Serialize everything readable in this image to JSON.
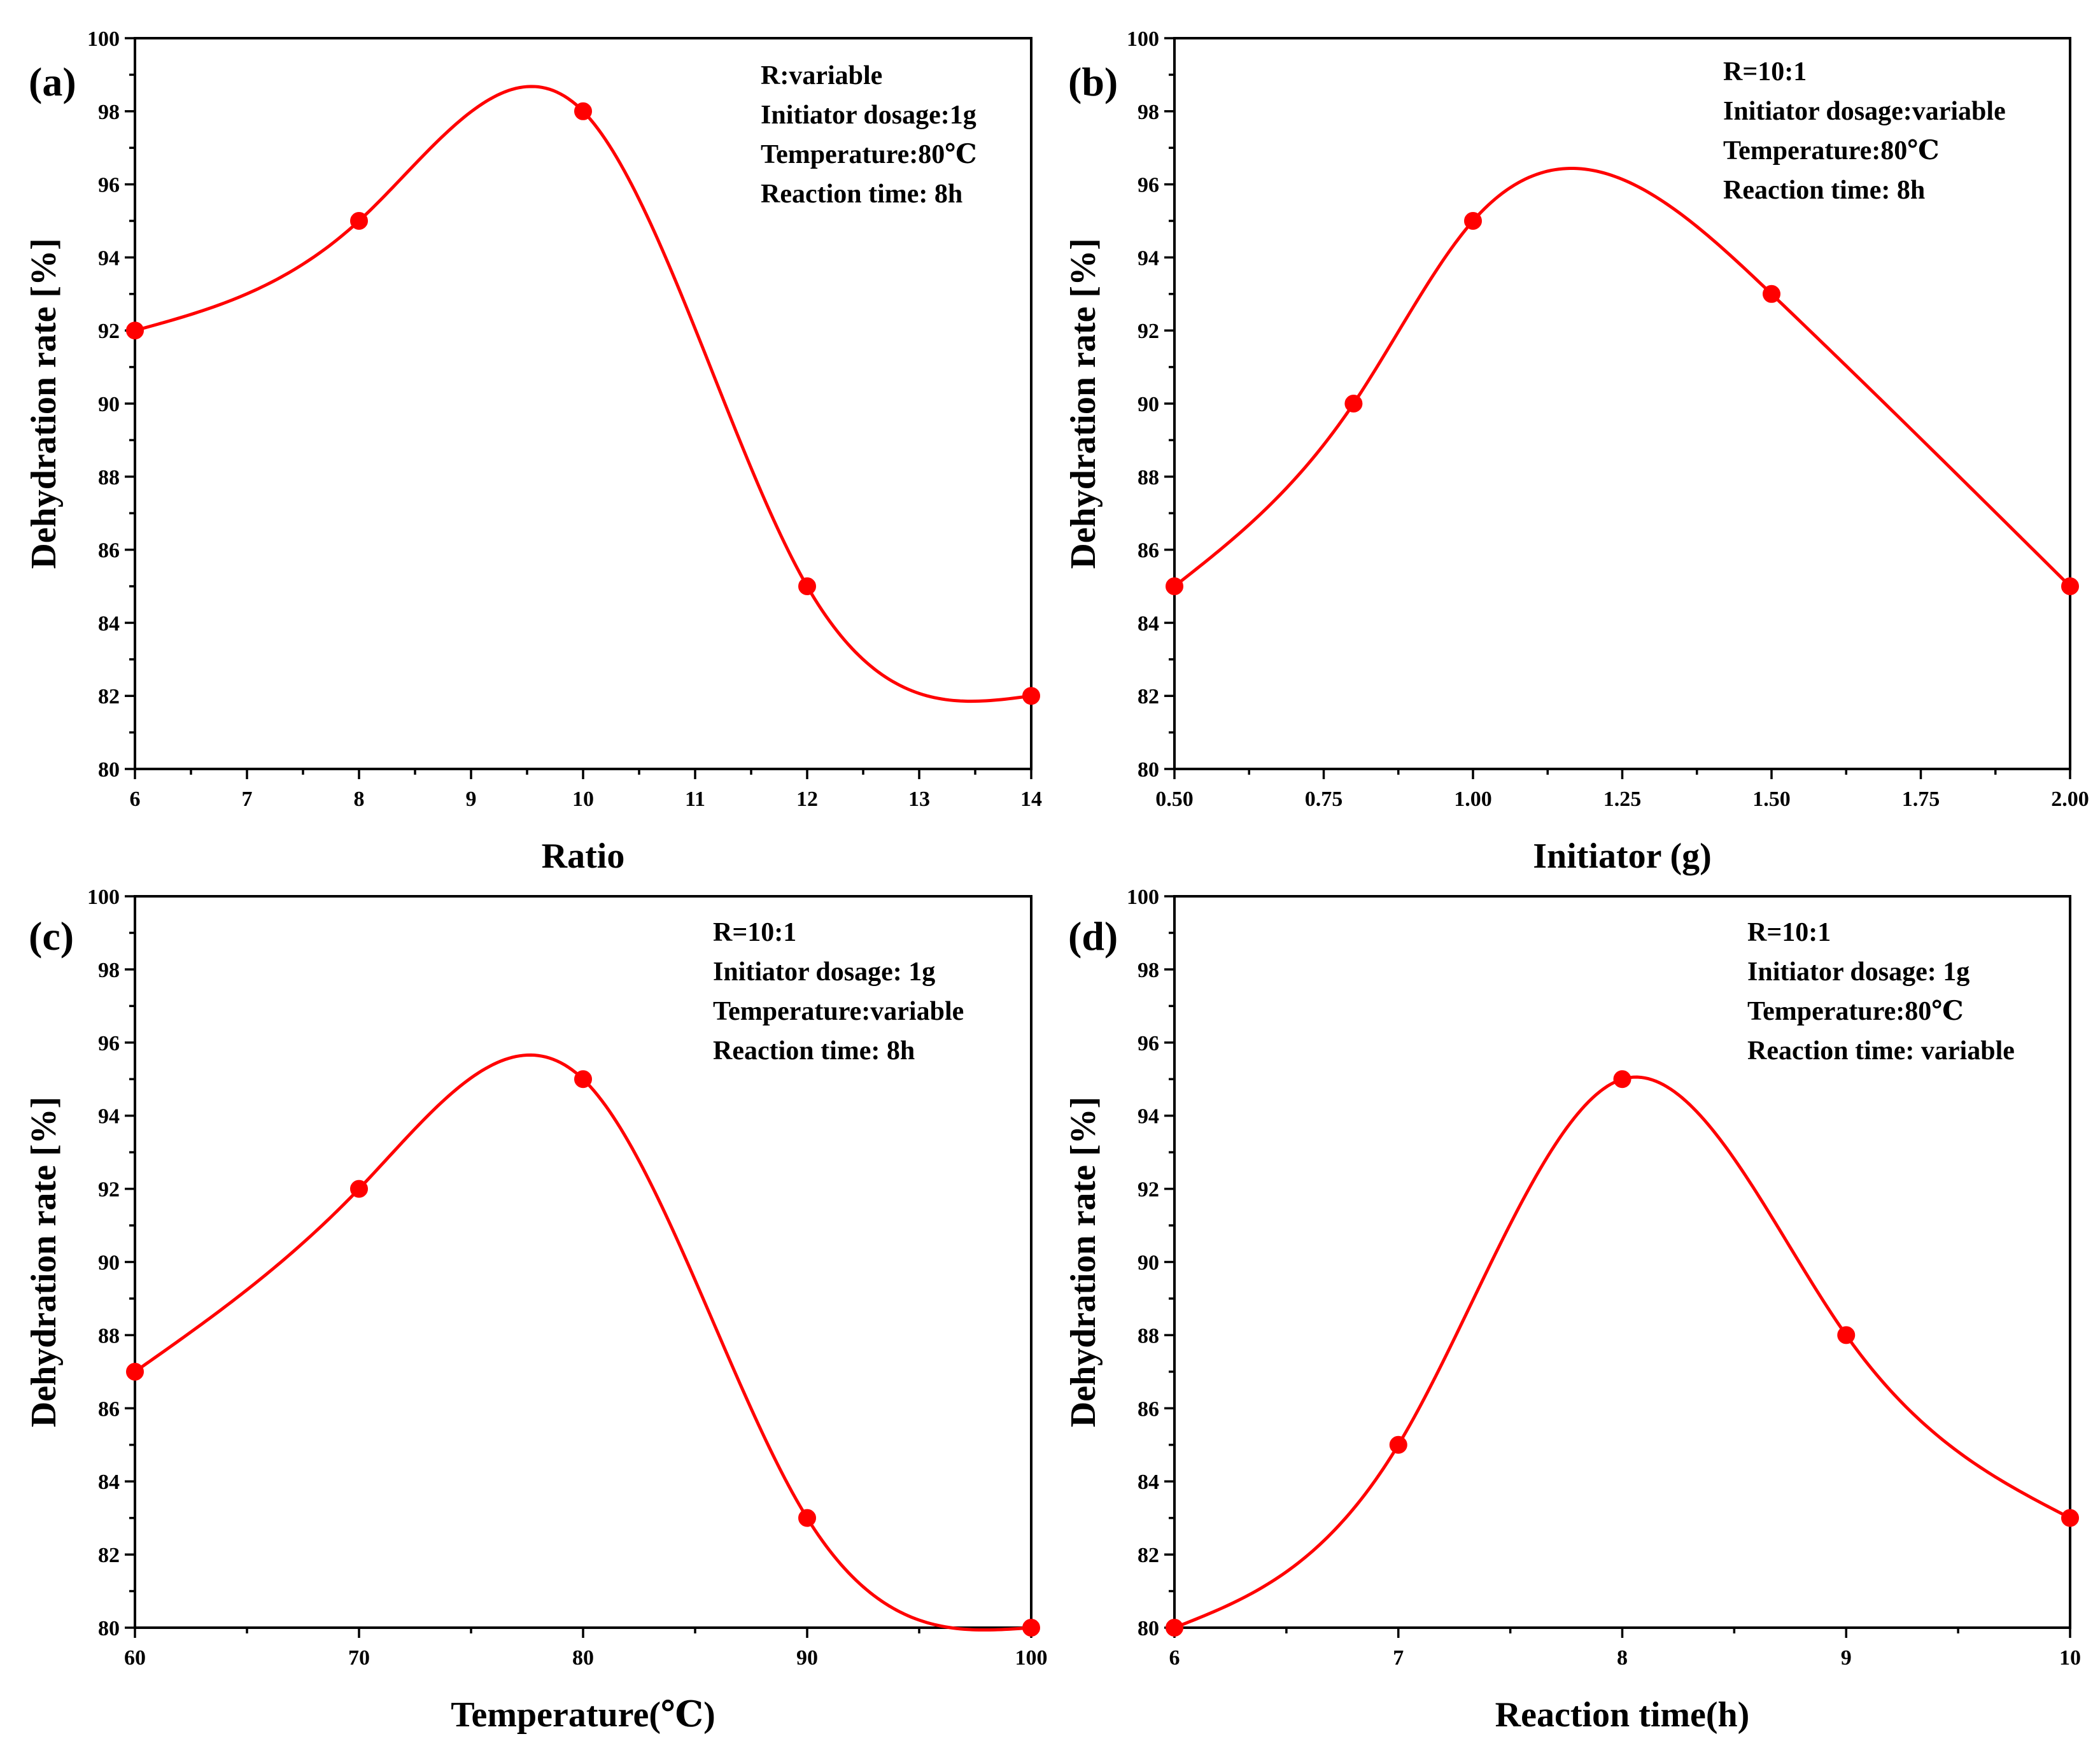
{
  "chart_data": [
    {
      "type": "line",
      "panel_label": "(a)",
      "xlabel": "Ratio",
      "ylabel": "Dehydration rate [%]",
      "x": [
        6,
        8,
        10,
        12,
        14
      ],
      "values": [
        92,
        95,
        98,
        85,
        82
      ],
      "xlim": [
        6,
        14
      ],
      "ylim": [
        80,
        100
      ],
      "xticks": [
        "6",
        "7",
        "8",
        "9",
        "10",
        "11",
        "12",
        "13",
        "14"
      ],
      "xtick_values": [
        6,
        7,
        8,
        9,
        10,
        11,
        12,
        13,
        14
      ],
      "yticks": [
        "80",
        "82",
        "84",
        "86",
        "88",
        "90",
        "92",
        "94",
        "96",
        "98",
        "100"
      ],
      "ytick_values": [
        80,
        82,
        84,
        86,
        88,
        90,
        92,
        94,
        96,
        98,
        100
      ],
      "annotations": [
        "R:variable",
        "Initiator dosage:1g",
        "Temperature:80℃",
        "Reaction time: 8h"
      ],
      "grid": false,
      "series_color": "#ff0000"
    },
    {
      "type": "line",
      "panel_label": "(b)",
      "xlabel": "Initiator (g)",
      "ylabel": "Dehydration rate [%]",
      "x": [
        0.5,
        0.8,
        1.0,
        1.5,
        2.0
      ],
      "values": [
        85,
        90,
        95,
        93,
        85
      ],
      "xlim": [
        0.5,
        2.0
      ],
      "ylim": [
        80,
        100
      ],
      "xticks": [
        "0.50",
        "0.75",
        "1.00",
        "1.25",
        "1.50",
        "1.75",
        "2.00"
      ],
      "xtick_values": [
        0.5,
        0.75,
        1.0,
        1.25,
        1.5,
        1.75,
        2.0
      ],
      "yticks": [
        "80",
        "82",
        "84",
        "86",
        "88",
        "90",
        "92",
        "94",
        "96",
        "98",
        "100"
      ],
      "ytick_values": [
        80,
        82,
        84,
        86,
        88,
        90,
        92,
        94,
        96,
        98,
        100
      ],
      "annotations": [
        "R=10:1",
        "Initiator dosage:variable",
        "Temperature:80℃",
        "Reaction time: 8h"
      ],
      "grid": false,
      "series_color": "#ff0000"
    },
    {
      "type": "line",
      "panel_label": "(c)",
      "xlabel": "Temperature(℃)",
      "ylabel": "Dehydration rate [%]",
      "x": [
        60,
        70,
        80,
        90,
        100
      ],
      "values": [
        87,
        92,
        95,
        83,
        80
      ],
      "xlim": [
        60,
        100
      ],
      "ylim": [
        80,
        100
      ],
      "xticks": [
        "60",
        "70",
        "80",
        "90",
        "100"
      ],
      "xtick_values": [
        60,
        70,
        80,
        90,
        100
      ],
      "yticks": [
        "80",
        "82",
        "84",
        "86",
        "88",
        "90",
        "92",
        "94",
        "96",
        "98",
        "100"
      ],
      "ytick_values": [
        80,
        82,
        84,
        86,
        88,
        90,
        92,
        94,
        96,
        98,
        100
      ],
      "annotations": [
        "R=10:1",
        "Initiator dosage: 1g",
        "Temperature:variable",
        "Reaction time: 8h"
      ],
      "grid": false,
      "series_color": "#ff0000"
    },
    {
      "type": "line",
      "panel_label": "(d)",
      "xlabel": "Reaction time(h)",
      "ylabel": "Dehydration rate [%]",
      "x": [
        6,
        7,
        8,
        9,
        10
      ],
      "values": [
        80,
        85,
        95,
        88,
        83
      ],
      "xlim": [
        6,
        10
      ],
      "ylim": [
        80,
        100
      ],
      "xticks": [
        "6",
        "7",
        "8",
        "9",
        "10"
      ],
      "xtick_values": [
        6,
        7,
        8,
        9,
        10
      ],
      "yticks": [
        "80",
        "82",
        "84",
        "86",
        "88",
        "90",
        "92",
        "94",
        "96",
        "98",
        "100"
      ],
      "ytick_values": [
        80,
        82,
        84,
        86,
        88,
        90,
        92,
        94,
        96,
        98,
        100
      ],
      "annotations": [
        "R=10:1",
        "Initiator dosage: 1g",
        "Temperature:80℃",
        "Reaction time: variable"
      ],
      "grid": false,
      "series_color": "#ff0000"
    }
  ]
}
